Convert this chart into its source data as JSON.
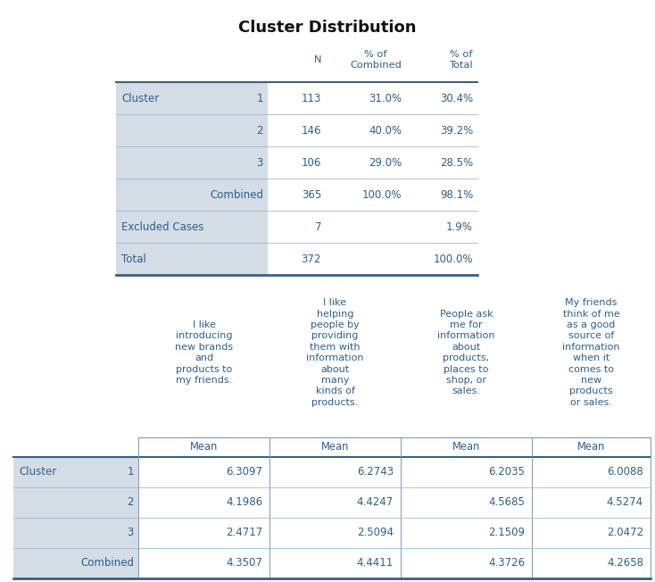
{
  "title": "Cluster Distribution",
  "title_fontsize": 12,
  "text_color": "#2E5F8A",
  "bg_color": "#FFFFFF",
  "cell_bg_label": "#D4DCE6",
  "cell_bg_white": "#FFFFFF",
  "line_color": "#7A9AB8",
  "line_color_thick": "#3A6080",
  "t1_headers": [
    "",
    "",
    "N",
    "% of\nCombined",
    "% of\nTotal"
  ],
  "t1_rows": [
    [
      "Cluster",
      "1",
      "113",
      "31.0%",
      "30.4%"
    ],
    [
      "",
      "2",
      "146",
      "40.0%",
      "39.2%"
    ],
    [
      "",
      "3",
      "106",
      "29.0%",
      "28.5%"
    ],
    [
      "",
      "Combined",
      "365",
      "100.0%",
      "98.1%"
    ],
    [
      "Excluded Cases",
      "",
      "7",
      "",
      "1.9%"
    ],
    [
      "Total",
      "",
      "372",
      "",
      "100.0%"
    ]
  ],
  "t2_col_headers": [
    "I like\nintroducing\nnew brands\nand\nproducts to\nmy friends.",
    "I like\nhelping\npeople by\nproviding\nthem with\ninformation\nabout\nmany\nkinds of\nproducts.",
    "People ask\nme for\ninformation\nabout\nproducts,\nplaces to\nshop, or\nsales.",
    "My friends\nthink of me\nas a good\nsource of\ninformation\nwhen it\ncomes to\nnew\nproducts\nor sales."
  ],
  "t2_rows": [
    [
      "Cluster",
      "1",
      "6.3097",
      "6.2743",
      "6.2035",
      "6.0088"
    ],
    [
      "",
      "2",
      "4.1986",
      "4.4247",
      "4.5685",
      "4.5274"
    ],
    [
      "",
      "3",
      "2.4717",
      "2.5094",
      "2.1509",
      "2.0472"
    ],
    [
      "",
      "Combined",
      "4.3507",
      "4.4411",
      "4.3726",
      "4.2658"
    ]
  ]
}
